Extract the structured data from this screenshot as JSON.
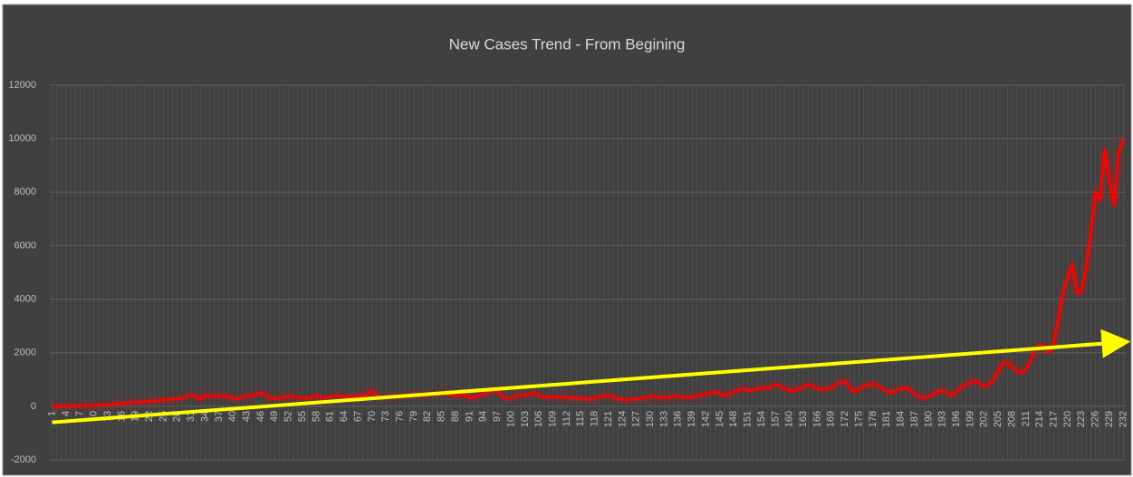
{
  "chart_data": {
    "type": "line",
    "title": "New Cases Trend - From Begining",
    "x": [
      1,
      2,
      3,
      4,
      5,
      6,
      7,
      8,
      9,
      10,
      11,
      12,
      13,
      14,
      15,
      16,
      17,
      18,
      19,
      20,
      21,
      22,
      23,
      24,
      25,
      26,
      27,
      28,
      29,
      30,
      31,
      32,
      33,
      34,
      35,
      36,
      37,
      38,
      39,
      40,
      41,
      42,
      43,
      44,
      45,
      46,
      47,
      48,
      49,
      50,
      51,
      52,
      53,
      54,
      55,
      56,
      57,
      58,
      59,
      60,
      61,
      62,
      63,
      64,
      65,
      66,
      67,
      68,
      69,
      70,
      71,
      72,
      73,
      74,
      75,
      76,
      77,
      78,
      79,
      80,
      81,
      82,
      83,
      84,
      85,
      86,
      87,
      88,
      89,
      90,
      91,
      92,
      93,
      94,
      95,
      96,
      97,
      98,
      99,
      100,
      101,
      102,
      103,
      104,
      105,
      106,
      107,
      108,
      109,
      110,
      111,
      112,
      113,
      114,
      115,
      116,
      117,
      118,
      119,
      120,
      121,
      122,
      123,
      124,
      125,
      126,
      127,
      128,
      129,
      130,
      131,
      132,
      133,
      134,
      135,
      136,
      137,
      138,
      139,
      140,
      141,
      142,
      143,
      144,
      145,
      146,
      147,
      148,
      149,
      150,
      151,
      152,
      153,
      154,
      155,
      156,
      157,
      158,
      159,
      160,
      161,
      162,
      163,
      164,
      165,
      166,
      167,
      168,
      169,
      170,
      171,
      172,
      173,
      174,
      175,
      176,
      177,
      178,
      179,
      180,
      181,
      182,
      183,
      184,
      185,
      186,
      187,
      188,
      189,
      190,
      191,
      192,
      193,
      194,
      195,
      196,
      197,
      198,
      199,
      200,
      201,
      202,
      203,
      204,
      205,
      206,
      207,
      208,
      209,
      210,
      211,
      212,
      213,
      214,
      215,
      216,
      217,
      218,
      219,
      220,
      221,
      222,
      223,
      224,
      225,
      226,
      227,
      228,
      229,
      230,
      231,
      232
    ],
    "series": [
      {
        "color": "#ff0000",
        "values": [
          0,
          0,
          0,
          0,
          0,
          10,
          10,
          20,
          20,
          30,
          40,
          50,
          60,
          70,
          80,
          100,
          120,
          130,
          150,
          160,
          170,
          190,
          200,
          220,
          250,
          230,
          270,
          300,
          280,
          350,
          420,
          380,
          250,
          430,
          350,
          400,
          380,
          390,
          350,
          300,
          280,
          330,
          400,
          380,
          450,
          500,
          420,
          300,
          280,
          300,
          330,
          380,
          360,
          300,
          320,
          280,
          350,
          400,
          300,
          320,
          350,
          380,
          400,
          350,
          330,
          360,
          380,
          400,
          450,
          600,
          380,
          350,
          330,
          360,
          400,
          380,
          350,
          420,
          450,
          400,
          380,
          420,
          450,
          480,
          500,
          450,
          420,
          380,
          400,
          450,
          300,
          350,
          400,
          450,
          500,
          550,
          600,
          350,
          300,
          320,
          380,
          420,
          400,
          450,
          500,
          380,
          350,
          330,
          320,
          340,
          350,
          330,
          310,
          320,
          300,
          280,
          250,
          300,
          350,
          380,
          400,
          320,
          280,
          250,
          230,
          260,
          280,
          300,
          320,
          350,
          380,
          320,
          300,
          330,
          360,
          380,
          340,
          300,
          350,
          380,
          420,
          450,
          500,
          550,
          480,
          400,
          450,
          550,
          600,
          650,
          620,
          580,
          650,
          700,
          680,
          720,
          800,
          760,
          650,
          600,
          580,
          650,
          720,
          800,
          760,
          680,
          620,
          650,
          700,
          800,
          900,
          950,
          700,
          550,
          650,
          750,
          800,
          850,
          780,
          650,
          550,
          500,
          600,
          650,
          700,
          600,
          450,
          350,
          300,
          380,
          450,
          550,
          600,
          500,
          400,
          550,
          700,
          800,
          900,
          950,
          850,
          750,
          800,
          1000,
          1300,
          1600,
          1650,
          1500,
          1300,
          1250,
          1400,
          1700,
          2100,
          2300,
          2200,
          2000,
          2400,
          3300,
          4300,
          4800,
          5300,
          4200,
          4300,
          5200,
          6500,
          8000,
          7700,
          9600,
          8500,
          7500,
          9500,
          10000
        ]
      }
    ],
    "trend": {
      "x": [
        1,
        232
      ],
      "values": [
        -600,
        2400
      ],
      "color": "#ffff00"
    },
    "xlim": [
      0.5,
      232.5
    ],
    "xticks": [
      1,
      4,
      7,
      10,
      13,
      16,
      19,
      22,
      25,
      28,
      31,
      34,
      37,
      40,
      43,
      46,
      49,
      52,
      55,
      58,
      61,
      64,
      67,
      70,
      73,
      76,
      79,
      82,
      85,
      88,
      91,
      94,
      97,
      100,
      103,
      106,
      109,
      112,
      115,
      118,
      121,
      124,
      127,
      130,
      133,
      136,
      139,
      142,
      145,
      148,
      151,
      154,
      157,
      160,
      163,
      166,
      169,
      172,
      175,
      178,
      181,
      184,
      187,
      190,
      193,
      196,
      199,
      202,
      205,
      208,
      211,
      214,
      217,
      220,
      223,
      226,
      229,
      232
    ],
    "ylim": [
      -2000,
      12000
    ],
    "yticks": [
      -2000,
      0,
      2000,
      4000,
      6000,
      8000,
      10000,
      12000
    ],
    "grid": true
  }
}
